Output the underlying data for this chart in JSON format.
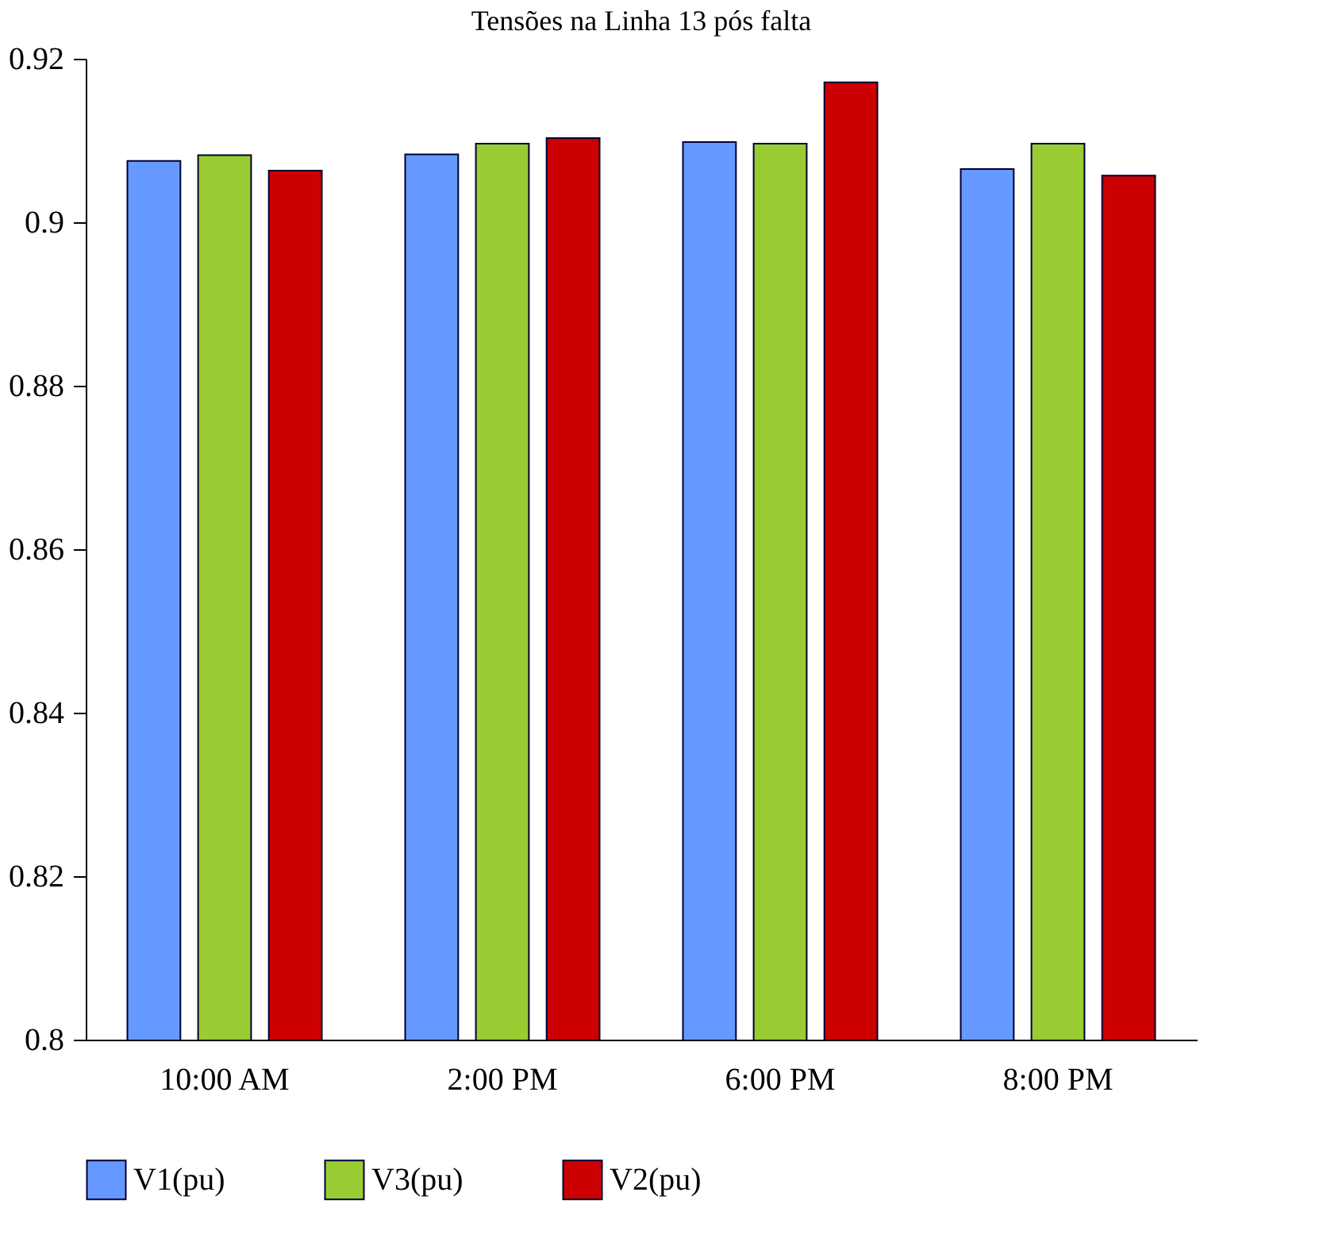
{
  "chart_data": {
    "type": "bar",
    "title": "Tensões na Linha 13 pós falta",
    "categories": [
      "10:00 AM",
      "2:00 PM",
      "6:00 PM",
      "8:00 PM"
    ],
    "series": [
      {
        "name": "V1(pu)",
        "color": "#6699ff",
        "values": [
          0.9075,
          0.9083,
          0.9098,
          0.9065
        ]
      },
      {
        "name": "V3(pu)",
        "color": "#99cc33",
        "values": [
          0.9082,
          0.9096,
          0.9096,
          0.9096
        ]
      },
      {
        "name": "V2(pu)",
        "color": "#cc0000",
        "values": [
          0.9063,
          0.9103,
          0.9171,
          0.9057
        ]
      }
    ],
    "ylim": [
      0.8,
      0.92
    ],
    "yticks": [
      0.8,
      0.82,
      0.84,
      0.86,
      0.88,
      0.9,
      0.92
    ],
    "grid": false,
    "legend": "bottom"
  }
}
